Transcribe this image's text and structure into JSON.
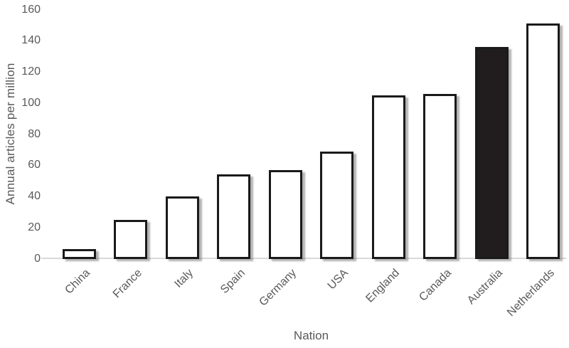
{
  "chart_data": {
    "type": "bar",
    "title": "",
    "xlabel": "Nation",
    "ylabel": "Annual articles per million",
    "categories": [
      "China",
      "France",
      "Italy",
      "Spain",
      "Germany",
      "USA",
      "England",
      "Canada",
      "Australia",
      "Netherlands"
    ],
    "values": [
      6,
      25,
      40,
      54,
      57,
      69,
      105,
      106,
      136,
      151
    ],
    "ylim": [
      0,
      160
    ],
    "yticks": [
      0,
      20,
      40,
      60,
      80,
      100,
      120,
      140,
      160
    ],
    "highlighted_category": "Australia",
    "grid": false,
    "legend": false,
    "colors": {
      "bar_fill": "#ffffff",
      "bar_highlight_fill": "#211d1e",
      "bar_border": "#1a1a1a",
      "text_color": "#595959",
      "axis_line_color": "#d9d9d9"
    }
  }
}
